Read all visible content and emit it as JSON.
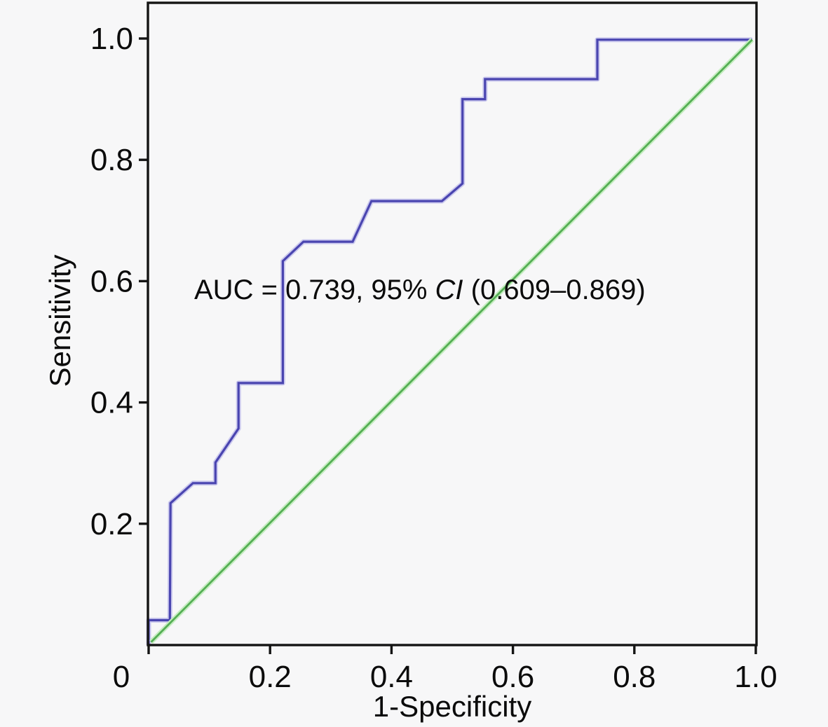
{
  "figure": {
    "background_color": "#f7f7f8",
    "text_color": "#0b0b0b"
  },
  "chart_data": {
    "type": "line",
    "subtype": "roc-curve",
    "title": "",
    "xlabel": "1-Specificity",
    "ylabel": "Sensitivity",
    "xlim": [
      0,
      1
    ],
    "ylim": [
      0,
      1
    ],
    "grid": "off",
    "legend": "none",
    "frame": "full-box",
    "tick_direction": "out",
    "frame_color": "#141414",
    "x_ticks": [
      {
        "label": "0",
        "value": 0,
        "dx": -39
      },
      {
        "label": "0.2",
        "value": 0.2
      },
      {
        "label": "0.4",
        "value": 0.4
      },
      {
        "label": "0.6",
        "value": 0.6
      },
      {
        "label": "0.8",
        "value": 0.8
      },
      {
        "label": "1.0",
        "value": 1.0
      }
    ],
    "y_ticks": [
      {
        "label": "0.2",
        "value": 0.2
      },
      {
        "label": "0.4",
        "value": 0.4
      },
      {
        "label": "0.6",
        "value": 0.6
      },
      {
        "label": "0.8",
        "value": 0.8
      },
      {
        "label": "1.0",
        "value": 1.0
      }
    ],
    "annotation": {
      "full": "AUC = 0.739, 95% CI (0.609–0.869)",
      "pre": "AUC = 0.739, 95% ",
      "italic": "CI",
      "post": " (0.609–0.869)"
    },
    "stats": {
      "auc": 0.739,
      "ci_level": "95%",
      "ci_lower": 0.609,
      "ci_upper": 0.869
    },
    "series": [
      {
        "name": "ROC curve",
        "color": "#4a45b0",
        "halo_color": "#cbc9ee",
        "width": 3.2,
        "halo_width": 7,
        "points": [
          [
            0.0,
            0.0
          ],
          [
            0.0,
            0.041
          ],
          [
            0.035,
            0.041
          ],
          [
            0.036,
            0.234
          ],
          [
            0.073,
            0.267
          ],
          [
            0.11,
            0.267
          ],
          [
            0.11,
            0.301
          ],
          [
            0.148,
            0.357
          ],
          [
            0.148,
            0.432
          ],
          [
            0.221,
            0.432
          ],
          [
            0.221,
            0.633
          ],
          [
            0.255,
            0.665
          ],
          [
            0.336,
            0.665
          ],
          [
            0.367,
            0.732
          ],
          [
            0.483,
            0.732
          ],
          [
            0.517,
            0.761
          ],
          [
            0.517,
            0.9
          ],
          [
            0.554,
            0.9
          ],
          [
            0.554,
            0.933
          ],
          [
            0.739,
            0.933
          ],
          [
            0.739,
            0.998
          ],
          [
            0.994,
            0.998
          ]
        ]
      },
      {
        "name": "Reference line",
        "color": "#54ae54",
        "halo_color": "#c6edc1",
        "width": 2.8,
        "halo_width": 7,
        "points": [
          [
            0.004,
            0.005
          ],
          [
            0.994,
            0.998
          ]
        ]
      }
    ]
  }
}
